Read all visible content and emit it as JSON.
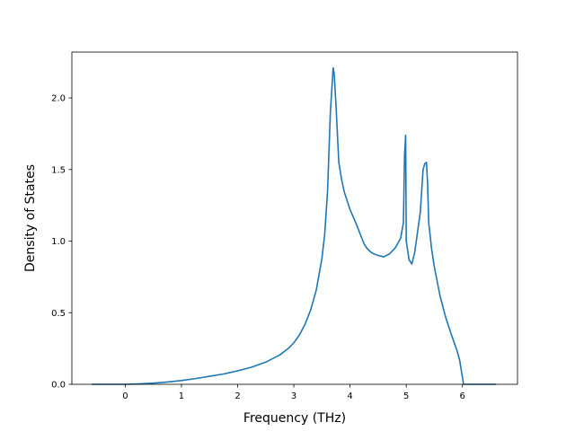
{
  "chart_data": {
    "type": "line",
    "title": "",
    "xlabel": "Frequency (THz)",
    "ylabel": "Density of States",
    "xlim": [
      -0.95,
      6.98
    ],
    "ylim": [
      0.0,
      2.32
    ],
    "xticks": [
      0,
      1,
      2,
      3,
      4,
      5,
      6
    ],
    "yticks": [
      0.0,
      0.5,
      1.0,
      1.5,
      2.0
    ],
    "xtick_labels": [
      "0",
      "1",
      "2",
      "3",
      "4",
      "5",
      "6"
    ],
    "ytick_labels": [
      "0.0",
      "0.5",
      "1.0",
      "1.5",
      "2.0"
    ],
    "grid": false,
    "series": [
      {
        "color": "#1f77b4",
        "x": [
          -0.6,
          0.0,
          0.25,
          0.5,
          0.75,
          1.0,
          1.25,
          1.5,
          1.75,
          2.0,
          2.25,
          2.5,
          2.75,
          2.9,
          3.0,
          3.1,
          3.2,
          3.3,
          3.4,
          3.5,
          3.55,
          3.6,
          3.65,
          3.7,
          3.72,
          3.75,
          3.8,
          3.85,
          3.9,
          4.0,
          4.1,
          4.2,
          4.25,
          4.3,
          4.35,
          4.4,
          4.5,
          4.6,
          4.65,
          4.7,
          4.8,
          4.9,
          4.95,
          4.97,
          4.99,
          5.0,
          5.05,
          5.1,
          5.15,
          5.2,
          5.25,
          5.3,
          5.33,
          5.36,
          5.38,
          5.4,
          5.45,
          5.5,
          5.6,
          5.7,
          5.8,
          5.9,
          5.95,
          6.0,
          6.02,
          6.1,
          6.3,
          6.6
        ],
        "y": [
          0.0,
          0.0,
          0.003,
          0.008,
          0.016,
          0.026,
          0.04,
          0.056,
          0.072,
          0.094,
          0.12,
          0.155,
          0.205,
          0.25,
          0.29,
          0.345,
          0.42,
          0.52,
          0.66,
          0.88,
          1.05,
          1.35,
          1.9,
          2.21,
          2.16,
          1.95,
          1.55,
          1.43,
          1.34,
          1.22,
          1.13,
          1.03,
          0.98,
          0.95,
          0.93,
          0.915,
          0.9,
          0.89,
          0.9,
          0.91,
          0.95,
          1.02,
          1.13,
          1.6,
          1.74,
          1.0,
          0.87,
          0.84,
          0.92,
          1.06,
          1.2,
          1.5,
          1.54,
          1.55,
          1.4,
          1.13,
          0.95,
          0.82,
          0.62,
          0.47,
          0.35,
          0.24,
          0.17,
          0.05,
          0.0,
          0.0,
          0.0,
          0.0
        ]
      }
    ]
  }
}
